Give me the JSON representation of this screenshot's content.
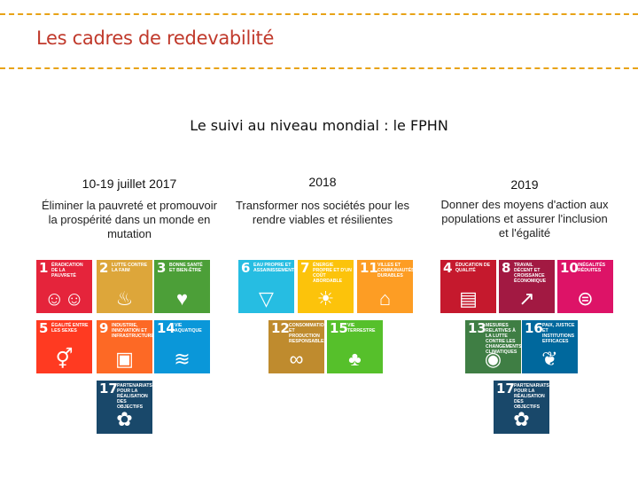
{
  "header": {
    "title": "Les cadres de redevabilité"
  },
  "subtitle": "Le suivi au niveau mondial : le FPHN",
  "columns": [
    {
      "date": "10-19 juillet 2017",
      "description": "Éliminer la pauvreté et promouvoir la prospérité dans un monde en mutation"
    },
    {
      "date": "2018",
      "description": "Transformer nos sociétés pour les rendre viables et résilientes"
    },
    {
      "date": "2019",
      "description": "Donner des moyens d'action aux populations et assurer l'inclusion et l'égalité"
    }
  ],
  "goals": [
    {
      "num": "1",
      "label": "Éradication de la pauvreté",
      "color": "#e5243b",
      "icon": "family-icon"
    },
    {
      "num": "2",
      "label": "Lutte contre la faim",
      "color": "#dda63a",
      "icon": "food-bowl-icon"
    },
    {
      "num": "3",
      "label": "Bonne santé et bien-être",
      "color": "#4c9f38",
      "icon": "heartbeat-icon"
    },
    {
      "num": "5",
      "label": "Égalité entre les sexes",
      "color": "#ff3a21",
      "icon": "gender-equality-icon"
    },
    {
      "num": "9",
      "label": "Industrie, innovation et infrastructure",
      "color": "#fd6925",
      "icon": "cubes-icon"
    },
    {
      "num": "14",
      "label": "Vie aquatique",
      "color": "#0a97d9",
      "icon": "fish-icon"
    },
    {
      "num": "17",
      "label": "Partenariats pour la réalisation des objectifs",
      "color": "#19486a",
      "icon": "partnership-flower-icon"
    },
    {
      "num": "6",
      "label": "Eau propre et assainissement",
      "color": "#26bde2",
      "icon": "water-drop-icon"
    },
    {
      "num": "7",
      "label": "Énergie propre et d'un coût abordable",
      "color": "#fcc30b",
      "icon": "sun-icon"
    },
    {
      "num": "11",
      "label": "Villes et communautés durables",
      "color": "#fd9d24",
      "icon": "city-icon"
    },
    {
      "num": "12",
      "label": "Consommation et production responsables",
      "color": "#bf8b2e",
      "icon": "infinity-icon"
    },
    {
      "num": "15",
      "label": "Vie terrestre",
      "color": "#56c02b",
      "icon": "tree-icon"
    },
    {
      "num": "4",
      "label": "Éducation de qualité",
      "color": "#c5192d",
      "icon": "book-icon"
    },
    {
      "num": "8",
      "label": "Travail décent et croissance économique",
      "color": "#a21942",
      "icon": "growth-chart-icon"
    },
    {
      "num": "10",
      "label": "Inégalités réduites",
      "color": "#dd1367",
      "icon": "equals-icon"
    },
    {
      "num": "13",
      "label": "Mesures relatives à la lutte contre les changements climatiques",
      "color": "#3f7e44",
      "icon": "eye-globe-icon"
    },
    {
      "num": "16",
      "label": "Paix, justice et institutions efficaces",
      "color": "#00689d",
      "icon": "dove-icon"
    },
    {
      "num": "17",
      "label": "Partenariats pour la réalisation des objectifs",
      "color": "#19486a",
      "icon": "partnership-flower-icon"
    }
  ]
}
